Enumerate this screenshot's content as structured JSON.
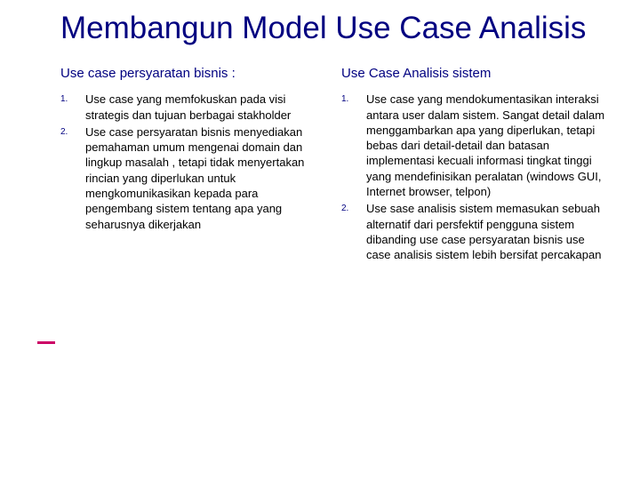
{
  "title": "Membangun Model Use Case Analisis",
  "leftCol": {
    "heading": "Use case persyaratan bisnis :",
    "items": [
      {
        "num": "1.",
        "text": "Use case yang memfokuskan pada visi strategis dan tujuan berbagai stakholder"
      },
      {
        "num": "2.",
        "text": "Use case persyaratan bisnis menyediakan pemahaman umum mengenai domain dan lingkup masalah , tetapi tidak menyertakan rincian yang diperlukan untuk mengkomunikasikan kepada para pengembang sistem tentang apa yang seharusnya dikerjakan"
      }
    ]
  },
  "rightCol": {
    "heading": "Use Case Analisis sistem",
    "items": [
      {
        "num": "1.",
        "text": "Use case yang mendokumentasikan interaksi antara user dalam sistem. Sangat detail dalam menggambarkan apa yang diperlukan, tetapi bebas dari detail-detail dan batasan implementasi kecuali informasi tingkat tinggi yang mendefinisikan peralatan (windows GUI, Internet browser, telpon)"
      },
      {
        "num": "2.",
        "text": "Use sase analisis sistem memasukan sebuah alternatif dari persfektif pengguna sistem dibanding use case persyaratan bisnis use case analisis sistem lebih bersifat percakapan"
      }
    ]
  },
  "colors": {
    "title_color": "#000080",
    "body_color": "#000000",
    "accent_color": "#cc0066",
    "bg_color": "#ffffff"
  },
  "fonts": {
    "title_size": 35,
    "subtitle_size": 15,
    "body_size": 13,
    "num_size": 10
  }
}
